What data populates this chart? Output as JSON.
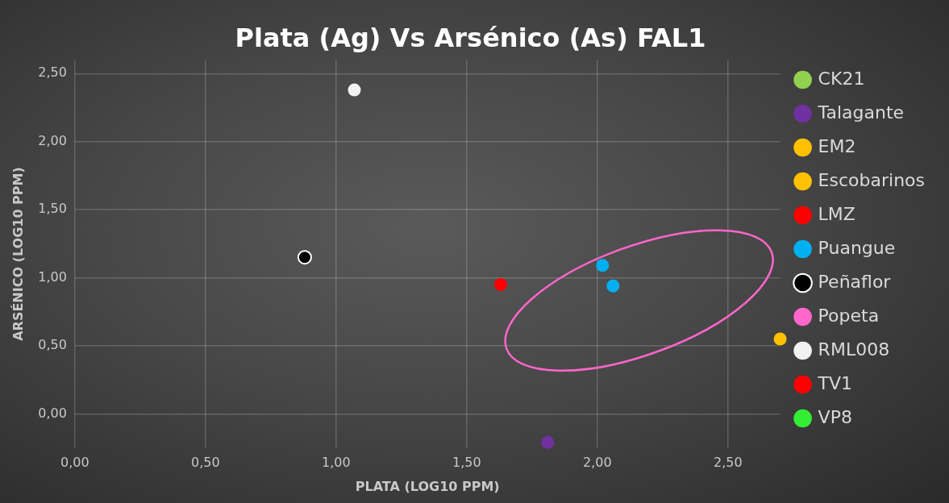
{
  "chart_data": {
    "type": "scatter",
    "title": "Plata (Ag) Vs Arsénico (As) FAL1",
    "xlabel": "PLATA (LOG10 PPM)",
    "ylabel": "ARSÉNICO (LOG10 PPM)",
    "xlim": [
      0,
      2.7
    ],
    "ylim": [
      -0.25,
      2.6
    ],
    "xticks": [
      {
        "value": 0,
        "label": "0,00"
      },
      {
        "value": 0.5,
        "label": "0,50"
      },
      {
        "value": 1,
        "label": "1,00"
      },
      {
        "value": 1.5,
        "label": "1,50"
      },
      {
        "value": 2,
        "label": "2,00"
      },
      {
        "value": 2.5,
        "label": "2,50"
      }
    ],
    "yticks": [
      {
        "value": 0,
        "label": "0,00"
      },
      {
        "value": 0.5,
        "label": "0,50"
      },
      {
        "value": 1,
        "label": "1,00"
      },
      {
        "value": 1.5,
        "label": "1,50"
      },
      {
        "value": 2,
        "label": "2,00"
      },
      {
        "value": 2.5,
        "label": "2,50"
      }
    ],
    "grid": true,
    "legend": "right",
    "marker": "circle",
    "series": [
      {
        "name": "CK21",
        "color": "#92d050"
      },
      {
        "name": "Talagante",
        "color": "#7030a0",
        "x": [
          1.81
        ],
        "values": [
          -0.21
        ]
      },
      {
        "name": "EM2",
        "color": "#ffc000",
        "x": [
          2.7
        ],
        "values": [
          0.55
        ]
      },
      {
        "name": "Escobarinos",
        "color": "#ffc000"
      },
      {
        "name": "LMZ",
        "color": "#ff0000",
        "x": [
          1.63
        ],
        "values": [
          0.95
        ]
      },
      {
        "name": "Puangue",
        "color": "#00b0f0",
        "x": [
          2.02,
          2.06
        ],
        "values": [
          1.09,
          0.94
        ]
      },
      {
        "name": "Peñaflor",
        "color": "#000000",
        "x": [
          0.88
        ],
        "values": [
          1.15
        ]
      },
      {
        "name": "Popeta",
        "color": "#ff66cc"
      },
      {
        "name": "RML008",
        "color": "#f2f2f2",
        "x": [
          1.07
        ],
        "values": [
          2.38
        ]
      },
      {
        "name": "TV1",
        "color": "#ff0000"
      },
      {
        "name": "VP8",
        "color": "#33ee33"
      }
    ]
  }
}
